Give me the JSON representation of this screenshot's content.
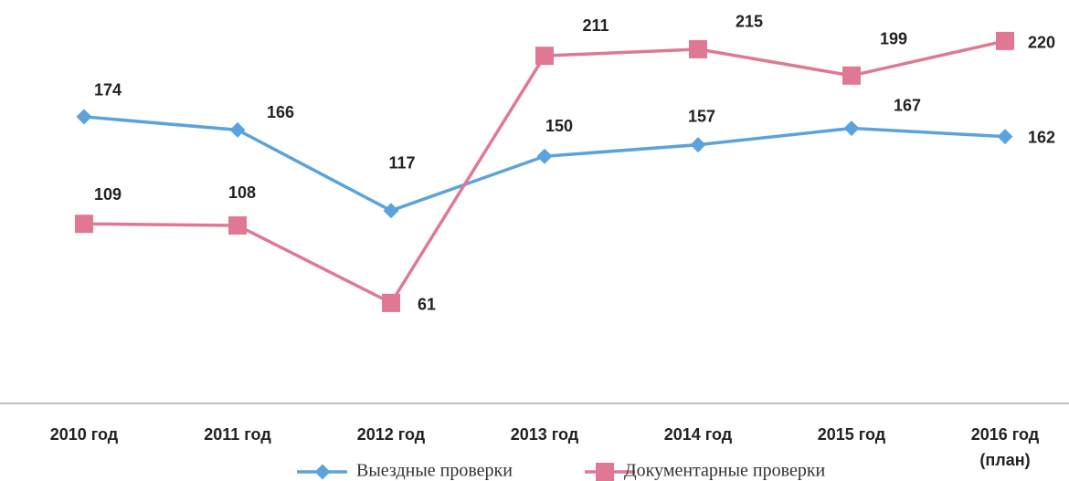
{
  "chart_data": {
    "type": "line",
    "categories": [
      "2010 год",
      "2011 год",
      "2012 год",
      "2013 год",
      "2014 год",
      "2015 год",
      "2016 год\n(план)"
    ],
    "series": [
      {
        "name": "Выездные проверки",
        "color": "#5ba3dc",
        "marker": "diamond",
        "values": [
          174,
          166,
          117,
          150,
          157,
          167,
          162
        ]
      },
      {
        "name": "Документарные проверки",
        "color": "#e07893",
        "marker": "square",
        "values": [
          109,
          108,
          61,
          211,
          215,
          199,
          220
        ]
      }
    ],
    "ylim": [
      0,
      250
    ]
  }
}
